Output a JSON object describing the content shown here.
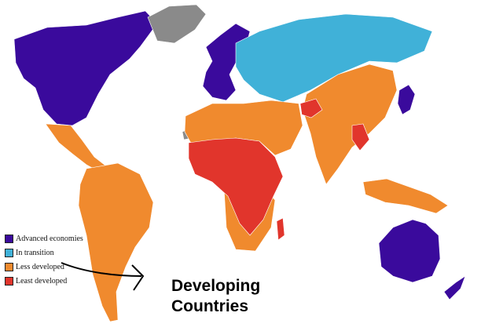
{
  "legend": {
    "items": [
      {
        "label": "Advanced economies",
        "color": "#3a0a9c"
      },
      {
        "label": "In transition",
        "color": "#40b1d8"
      },
      {
        "label": "Less developed",
        "color": "#f08a2e"
      },
      {
        "label": "Least developed",
        "color": "#e1352c"
      }
    ]
  },
  "unclassified_color": "#8a8a8a",
  "annotation": {
    "line1": "Developing",
    "line2": "Countries"
  }
}
